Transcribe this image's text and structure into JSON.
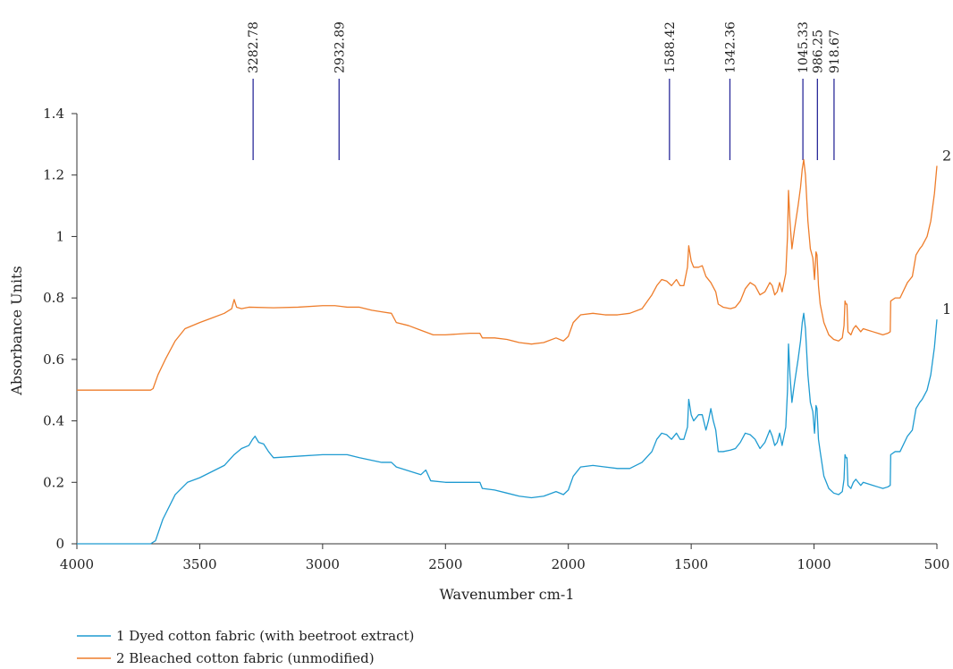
{
  "chart_data": {
    "type": "line",
    "xlabel": "Wavenumber cm-1",
    "ylabel": "Absorbance Units",
    "xlim": [
      4000,
      500
    ],
    "ylim": [
      0,
      1.4
    ],
    "x_reversed": true,
    "grid": false,
    "x_ticks": [
      4000,
      3500,
      3000,
      2500,
      2000,
      1500,
      1000,
      500
    ],
    "x_tick_labels": [
      "4000",
      "3500",
      "3000",
      "2500",
      "2000",
      "1500",
      "1000",
      "500"
    ],
    "y_ticks": [
      0,
      0.2,
      0.4,
      0.6,
      0.8,
      1,
      1.2,
      1.4
    ],
    "y_tick_labels": [
      "0",
      "0.2",
      "0.4",
      "0.6",
      "0.8",
      "1",
      "1.2",
      "1.4"
    ],
    "peak_markers": [
      {
        "x": 3282.78,
        "label": "3282.78"
      },
      {
        "x": 2932.89,
        "label": "2932.89"
      },
      {
        "x": 1588.42,
        "label": "1588.42"
      },
      {
        "x": 1342.36,
        "label": "1342.36"
      },
      {
        "x": 1045.33,
        "label": "1045.33"
      },
      {
        "x": 986.25,
        "label": "986.25"
      },
      {
        "x": 918.67,
        "label": "918.67"
      }
    ],
    "peak_marker_color": "#2b2b9a",
    "series": [
      {
        "name": "1 Dyed cotton fabric (with beetroot extract)",
        "curve_label": "1",
        "color": "#1f9bd1",
        "points": [
          [
            4000,
            0.0
          ],
          [
            3700,
            0.0
          ],
          [
            3680,
            0.01
          ],
          [
            3650,
            0.08
          ],
          [
            3600,
            0.16
          ],
          [
            3550,
            0.2
          ],
          [
            3500,
            0.215
          ],
          [
            3450,
            0.235
          ],
          [
            3400,
            0.255
          ],
          [
            3360,
            0.29
          ],
          [
            3330,
            0.31
          ],
          [
            3300,
            0.32
          ],
          [
            3285,
            0.34
          ],
          [
            3275,
            0.35
          ],
          [
            3260,
            0.33
          ],
          [
            3240,
            0.325
          ],
          [
            3220,
            0.3
          ],
          [
            3200,
            0.28
          ],
          [
            3100,
            0.285
          ],
          [
            3000,
            0.29
          ],
          [
            2900,
            0.29
          ],
          [
            2850,
            0.28
          ],
          [
            2760,
            0.265
          ],
          [
            2720,
            0.265
          ],
          [
            2700,
            0.25
          ],
          [
            2600,
            0.225
          ],
          [
            2580,
            0.24
          ],
          [
            2560,
            0.205
          ],
          [
            2500,
            0.2
          ],
          [
            2400,
            0.2
          ],
          [
            2360,
            0.2
          ],
          [
            2350,
            0.18
          ],
          [
            2300,
            0.175
          ],
          [
            2250,
            0.165
          ],
          [
            2200,
            0.155
          ],
          [
            2150,
            0.15
          ],
          [
            2100,
            0.155
          ],
          [
            2050,
            0.17
          ],
          [
            2020,
            0.16
          ],
          [
            2000,
            0.175
          ],
          [
            1980,
            0.22
          ],
          [
            1950,
            0.25
          ],
          [
            1900,
            0.255
          ],
          [
            1850,
            0.25
          ],
          [
            1800,
            0.245
          ],
          [
            1750,
            0.245
          ],
          [
            1700,
            0.265
          ],
          [
            1660,
            0.3
          ],
          [
            1640,
            0.34
          ],
          [
            1620,
            0.36
          ],
          [
            1600,
            0.355
          ],
          [
            1580,
            0.34
          ],
          [
            1560,
            0.36
          ],
          [
            1545,
            0.34
          ],
          [
            1530,
            0.34
          ],
          [
            1515,
            0.38
          ],
          [
            1510,
            0.47
          ],
          [
            1500,
            0.42
          ],
          [
            1490,
            0.4
          ],
          [
            1470,
            0.42
          ],
          [
            1455,
            0.42
          ],
          [
            1440,
            0.37
          ],
          [
            1430,
            0.4
          ],
          [
            1420,
            0.44
          ],
          [
            1410,
            0.4
          ],
          [
            1400,
            0.37
          ],
          [
            1390,
            0.3
          ],
          [
            1370,
            0.3
          ],
          [
            1340,
            0.305
          ],
          [
            1320,
            0.31
          ],
          [
            1300,
            0.33
          ],
          [
            1280,
            0.36
          ],
          [
            1260,
            0.355
          ],
          [
            1240,
            0.34
          ],
          [
            1220,
            0.31
          ],
          [
            1200,
            0.33
          ],
          [
            1180,
            0.37
          ],
          [
            1170,
            0.35
          ],
          [
            1160,
            0.32
          ],
          [
            1150,
            0.33
          ],
          [
            1140,
            0.36
          ],
          [
            1130,
            0.32
          ],
          [
            1115,
            0.38
          ],
          [
            1108,
            0.5
          ],
          [
            1104,
            0.65
          ],
          [
            1098,
            0.55
          ],
          [
            1090,
            0.46
          ],
          [
            1080,
            0.52
          ],
          [
            1065,
            0.6
          ],
          [
            1055,
            0.66
          ],
          [
            1048,
            0.72
          ],
          [
            1042,
            0.75
          ],
          [
            1035,
            0.7
          ],
          [
            1025,
            0.55
          ],
          [
            1015,
            0.46
          ],
          [
            1005,
            0.43
          ],
          [
            998,
            0.36
          ],
          [
            992,
            0.45
          ],
          [
            988,
            0.44
          ],
          [
            982,
            0.34
          ],
          [
            975,
            0.3
          ],
          [
            960,
            0.22
          ],
          [
            940,
            0.18
          ],
          [
            920,
            0.165
          ],
          [
            900,
            0.16
          ],
          [
            885,
            0.17
          ],
          [
            878,
            0.21
          ],
          [
            874,
            0.29
          ],
          [
            870,
            0.28
          ],
          [
            866,
            0.28
          ],
          [
            862,
            0.19
          ],
          [
            850,
            0.18
          ],
          [
            840,
            0.2
          ],
          [
            830,
            0.21
          ],
          [
            810,
            0.19
          ],
          [
            800,
            0.2
          ],
          [
            780,
            0.195
          ],
          [
            760,
            0.19
          ],
          [
            740,
            0.185
          ],
          [
            720,
            0.18
          ],
          [
            700,
            0.185
          ],
          [
            690,
            0.19
          ],
          [
            688,
            0.29
          ],
          [
            670,
            0.3
          ],
          [
            650,
            0.3
          ],
          [
            620,
            0.35
          ],
          [
            600,
            0.37
          ],
          [
            585,
            0.44
          ],
          [
            570,
            0.46
          ],
          [
            560,
            0.47
          ],
          [
            540,
            0.5
          ],
          [
            525,
            0.55
          ],
          [
            510,
            0.64
          ],
          [
            500,
            0.73
          ]
        ]
      },
      {
        "name": "2 Bleached cotton fabric (unmodified)",
        "curve_label": "2",
        "color": "#ee7d2b",
        "points": [
          [
            4000,
            0.5
          ],
          [
            3700,
            0.5
          ],
          [
            3690,
            0.505
          ],
          [
            3670,
            0.55
          ],
          [
            3640,
            0.6
          ],
          [
            3600,
            0.66
          ],
          [
            3560,
            0.7
          ],
          [
            3500,
            0.72
          ],
          [
            3450,
            0.735
          ],
          [
            3400,
            0.75
          ],
          [
            3370,
            0.765
          ],
          [
            3360,
            0.795
          ],
          [
            3350,
            0.77
          ],
          [
            3330,
            0.765
          ],
          [
            3300,
            0.77
          ],
          [
            3200,
            0.768
          ],
          [
            3100,
            0.77
          ],
          [
            3000,
            0.775
          ],
          [
            2950,
            0.775
          ],
          [
            2900,
            0.77
          ],
          [
            2850,
            0.77
          ],
          [
            2800,
            0.76
          ],
          [
            2760,
            0.755
          ],
          [
            2720,
            0.75
          ],
          [
            2700,
            0.72
          ],
          [
            2650,
            0.71
          ],
          [
            2600,
            0.695
          ],
          [
            2550,
            0.68
          ],
          [
            2500,
            0.68
          ],
          [
            2400,
            0.685
          ],
          [
            2360,
            0.685
          ],
          [
            2350,
            0.67
          ],
          [
            2300,
            0.67
          ],
          [
            2250,
            0.665
          ],
          [
            2200,
            0.655
          ],
          [
            2150,
            0.65
          ],
          [
            2100,
            0.655
          ],
          [
            2050,
            0.67
          ],
          [
            2020,
            0.66
          ],
          [
            2000,
            0.675
          ],
          [
            1980,
            0.72
          ],
          [
            1950,
            0.745
          ],
          [
            1900,
            0.75
          ],
          [
            1850,
            0.745
          ],
          [
            1800,
            0.745
          ],
          [
            1750,
            0.75
          ],
          [
            1700,
            0.765
          ],
          [
            1660,
            0.81
          ],
          [
            1640,
            0.84
          ],
          [
            1620,
            0.86
          ],
          [
            1600,
            0.855
          ],
          [
            1580,
            0.84
          ],
          [
            1560,
            0.86
          ],
          [
            1545,
            0.84
          ],
          [
            1530,
            0.84
          ],
          [
            1515,
            0.9
          ],
          [
            1510,
            0.97
          ],
          [
            1500,
            0.92
          ],
          [
            1490,
            0.9
          ],
          [
            1470,
            0.9
          ],
          [
            1455,
            0.905
          ],
          [
            1440,
            0.87
          ],
          [
            1420,
            0.85
          ],
          [
            1400,
            0.82
          ],
          [
            1390,
            0.78
          ],
          [
            1370,
            0.77
          ],
          [
            1340,
            0.765
          ],
          [
            1320,
            0.77
          ],
          [
            1300,
            0.79
          ],
          [
            1280,
            0.83
          ],
          [
            1260,
            0.85
          ],
          [
            1240,
            0.84
          ],
          [
            1220,
            0.81
          ],
          [
            1200,
            0.82
          ],
          [
            1180,
            0.85
          ],
          [
            1170,
            0.84
          ],
          [
            1160,
            0.81
          ],
          [
            1150,
            0.82
          ],
          [
            1140,
            0.85
          ],
          [
            1130,
            0.82
          ],
          [
            1115,
            0.88
          ],
          [
            1108,
            1.0
          ],
          [
            1104,
            1.15
          ],
          [
            1098,
            1.05
          ],
          [
            1090,
            0.96
          ],
          [
            1080,
            1.02
          ],
          [
            1065,
            1.1
          ],
          [
            1055,
            1.16
          ],
          [
            1048,
            1.22
          ],
          [
            1042,
            1.25
          ],
          [
            1035,
            1.2
          ],
          [
            1025,
            1.05
          ],
          [
            1015,
            0.96
          ],
          [
            1005,
            0.93
          ],
          [
            998,
            0.86
          ],
          [
            992,
            0.95
          ],
          [
            988,
            0.94
          ],
          [
            982,
            0.84
          ],
          [
            975,
            0.78
          ],
          [
            960,
            0.72
          ],
          [
            940,
            0.68
          ],
          [
            920,
            0.665
          ],
          [
            900,
            0.66
          ],
          [
            885,
            0.67
          ],
          [
            878,
            0.71
          ],
          [
            874,
            0.79
          ],
          [
            870,
            0.78
          ],
          [
            866,
            0.78
          ],
          [
            862,
            0.69
          ],
          [
            850,
            0.68
          ],
          [
            840,
            0.7
          ],
          [
            830,
            0.71
          ],
          [
            810,
            0.69
          ],
          [
            800,
            0.7
          ],
          [
            780,
            0.695
          ],
          [
            760,
            0.69
          ],
          [
            740,
            0.685
          ],
          [
            720,
            0.68
          ],
          [
            700,
            0.685
          ],
          [
            690,
            0.69
          ],
          [
            688,
            0.79
          ],
          [
            670,
            0.8
          ],
          [
            650,
            0.8
          ],
          [
            620,
            0.85
          ],
          [
            600,
            0.87
          ],
          [
            585,
            0.94
          ],
          [
            570,
            0.96
          ],
          [
            560,
            0.97
          ],
          [
            540,
            1.0
          ],
          [
            525,
            1.05
          ],
          [
            510,
            1.14
          ],
          [
            500,
            1.23
          ]
        ]
      }
    ]
  }
}
